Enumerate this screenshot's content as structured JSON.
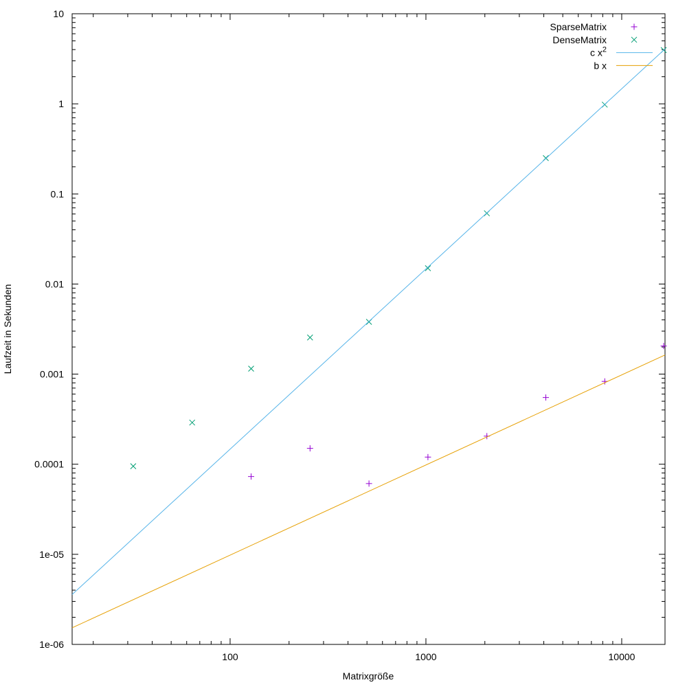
{
  "chart_data": {
    "type": "scatter",
    "title": "",
    "xlabel": "Matrixgröße",
    "ylabel": "Laufzeit in Sekunden",
    "x_scale": "log",
    "y_scale": "log",
    "xlim": [
      15.6,
      16640
    ],
    "ylim": [
      1e-06,
      10
    ],
    "grid": false,
    "x_ticks": [
      100,
      1000,
      10000
    ],
    "x_tick_labels": [
      "100",
      "1000",
      "10000"
    ],
    "y_ticks": [
      1e-06,
      1e-05,
      0.0001,
      0.001,
      0.01,
      0.1,
      1,
      10
    ],
    "y_tick_labels": [
      "1e-06",
      "1e-05",
      "0.0001",
      "0.001",
      "0.01",
      "0.1",
      "1",
      "10"
    ],
    "legend_position": "top-right-inside",
    "axis_color": "#000000",
    "series": [
      {
        "name": "SparseMatrix",
        "label": "SparseMatrix",
        "label_sup": "",
        "type": "points",
        "marker": "plus",
        "color": "#9400d3",
        "points": [
          [
            128,
            7.3e-05
          ],
          [
            256,
            0.00015
          ],
          [
            512,
            6.1e-05
          ],
          [
            1024,
            0.00012
          ],
          [
            2048,
            0.000205
          ],
          [
            4096,
            0.00055
          ],
          [
            8192,
            0.00083
          ],
          [
            16384,
            0.00205
          ]
        ]
      },
      {
        "name": "DenseMatrix",
        "label": "DenseMatrix",
        "label_sup": "",
        "type": "points",
        "marker": "cross",
        "color": "#009e73",
        "points": [
          [
            32,
            9.5e-05
          ],
          [
            64,
            0.00029
          ],
          [
            128,
            0.00115
          ],
          [
            256,
            0.00255
          ],
          [
            512,
            0.0038
          ],
          [
            1024,
            0.015
          ],
          [
            2048,
            0.061
          ],
          [
            4096,
            0.25
          ],
          [
            8192,
            0.98
          ],
          [
            16384,
            3.95
          ]
        ]
      },
      {
        "name": "c x^2",
        "label": "c x",
        "label_sup": "2",
        "type": "function",
        "coefficient": 1.47e-08,
        "exponent": 2,
        "color": "#56b4e9"
      },
      {
        "name": "b x",
        "label": "b x",
        "label_sup": "",
        "type": "function",
        "coefficient": 9.8e-08,
        "exponent": 1,
        "color": "#e69f00"
      }
    ]
  }
}
